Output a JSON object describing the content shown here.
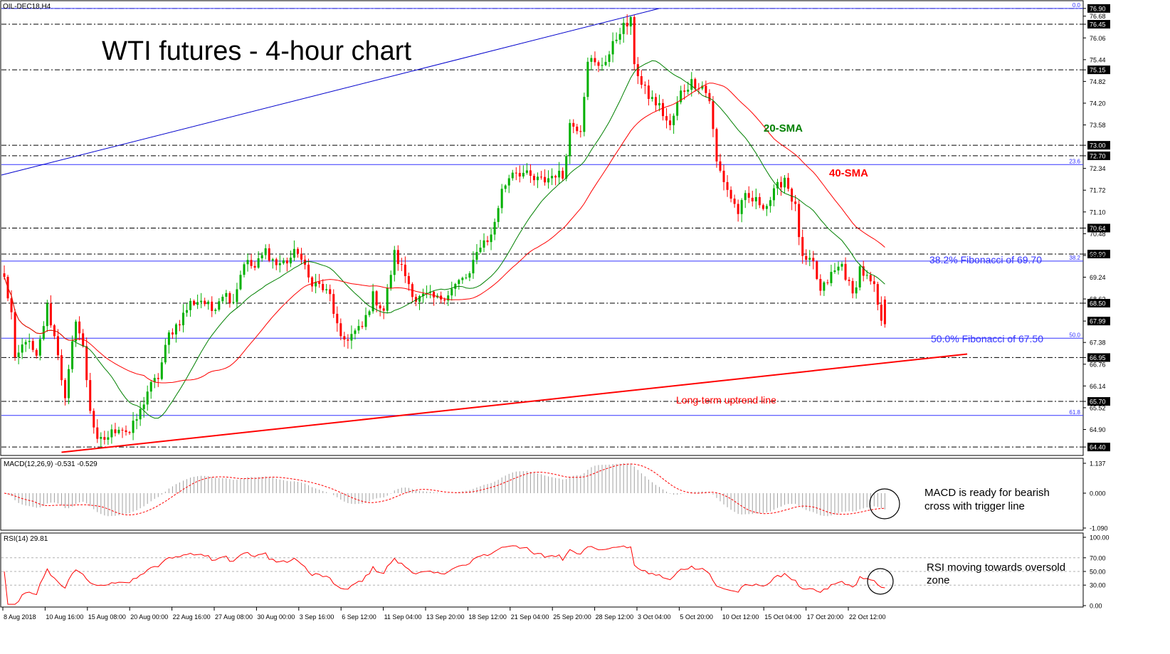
{
  "chart_data": {
    "type": "candlestick",
    "symbol": "OIL-DEC18,H4",
    "title": "WTI futures - 4-hour chart",
    "main": {
      "ylim": [
        64.2,
        77.1
      ],
      "price_ticks": [
        "76.90",
        "76.68",
        "76.45",
        "76.06",
        "75.44",
        "75.15",
        "74.82",
        "74.20",
        "73.58",
        "73.00",
        "72.70",
        "72.34",
        "71.72",
        "71.10",
        "70.64",
        "70.48",
        "69.90",
        "69.86",
        "69.24",
        "68.62",
        "68.50",
        "67.99",
        "67.38",
        "66.95",
        "66.76",
        "66.14",
        "65.70",
        "65.52",
        "64.90",
        "64.40"
      ],
      "boxed_ticks": [
        "76.90",
        "76.45",
        "75.15",
        "73.00",
        "72.70",
        "70.64",
        "69.90",
        "68.50",
        "67.99",
        "66.95",
        "65.70",
        "64.40"
      ],
      "dashed_levels": [
        76.9,
        76.45,
        75.15,
        73.0,
        72.7,
        70.64,
        69.9,
        68.5,
        66.95,
        65.7,
        64.4
      ],
      "fib_levels": [
        {
          "price": 76.9,
          "tag": "0.0"
        },
        {
          "price": 72.45,
          "tag": "23.6"
        },
        {
          "price": 69.7,
          "tag": "38.2"
        },
        {
          "price": 67.5,
          "tag": "50.0"
        },
        {
          "price": 65.3,
          "tag": "61.8"
        }
      ],
      "channel_line": {
        "start": [
          0,
          72.15
        ],
        "end": [
          183,
          76.9
        ]
      },
      "uptrend_line": {
        "start": [
          16,
          64.25
        ],
        "end": [
          269,
          67.05
        ]
      },
      "anchors": [
        [
          0,
          69.2
        ],
        [
          2,
          68.2
        ],
        [
          3,
          66.8
        ],
        [
          6,
          67.5
        ],
        [
          9,
          66.9
        ],
        [
          12,
          68.4
        ],
        [
          15,
          67.1
        ],
        [
          17,
          65.7
        ],
        [
          20,
          68.1
        ],
        [
          22,
          67.2
        ],
        [
          24,
          65.5
        ],
        [
          26,
          64.5
        ],
        [
          29,
          64.7
        ],
        [
          32,
          65.0
        ],
        [
          35,
          64.8
        ],
        [
          38,
          65.4
        ],
        [
          40,
          66.0
        ],
        [
          43,
          66.4
        ],
        [
          46,
          67.6
        ],
        [
          49,
          68.0
        ],
        [
          52,
          68.5
        ],
        [
          55,
          68.6
        ],
        [
          58,
          68.3
        ],
        [
          61,
          68.8
        ],
        [
          64,
          68.6
        ],
        [
          67,
          69.7
        ],
        [
          70,
          69.5
        ],
        [
          73,
          70.0
        ],
        [
          76,
          69.6
        ],
        [
          79,
          69.7
        ],
        [
          82,
          70.0
        ],
        [
          85,
          69.2
        ],
        [
          88,
          69.0
        ],
        [
          91,
          68.7
        ],
        [
          94,
          67.4
        ],
        [
          97,
          67.6
        ],
        [
          100,
          67.8
        ],
        [
          103,
          68.7
        ],
        [
          106,
          68.3
        ],
        [
          109,
          69.9
        ],
        [
          112,
          69.3
        ],
        [
          115,
          68.6
        ],
        [
          118,
          68.7
        ],
        [
          121,
          68.6
        ],
        [
          124,
          68.8
        ],
        [
          127,
          69.1
        ],
        [
          130,
          69.3
        ],
        [
          133,
          70.2
        ],
        [
          136,
          70.4
        ],
        [
          139,
          71.7
        ],
        [
          142,
          72.3
        ],
        [
          145,
          72.2
        ],
        [
          148,
          72.0
        ],
        [
          151,
          72.0
        ],
        [
          154,
          72.2
        ],
        [
          156,
          72.1
        ],
        [
          158,
          73.6
        ],
        [
          161,
          73.5
        ],
        [
          163,
          75.5
        ],
        [
          166,
          75.2
        ],
        [
          169,
          75.6
        ],
        [
          172,
          76.3
        ],
        [
          175,
          76.5
        ],
        [
          176,
          75.4
        ],
        [
          178,
          74.7
        ],
        [
          180,
          74.4
        ],
        [
          183,
          74.1
        ],
        [
          186,
          73.5
        ],
        [
          189,
          74.5
        ],
        [
          192,
          74.8
        ],
        [
          195,
          74.7
        ],
        [
          197,
          74.3
        ],
        [
          199,
          72.5
        ],
        [
          201,
          72.0
        ],
        [
          203,
          71.5
        ],
        [
          205,
          71.1
        ],
        [
          207,
          71.5
        ],
        [
          210,
          71.4
        ],
        [
          213,
          71.3
        ],
        [
          216,
          71.8
        ],
        [
          218,
          72.1
        ],
        [
          221,
          71.2
        ],
        [
          223,
          69.7
        ],
        [
          226,
          69.6
        ],
        [
          228,
          68.8
        ],
        [
          231,
          69.3
        ],
        [
          234,
          69.6
        ],
        [
          237,
          68.7
        ],
        [
          239,
          69.5
        ],
        [
          241,
          69.2
        ],
        [
          243,
          68.9
        ],
        [
          245,
          68.0
        ]
      ],
      "last_candle": [
        246,
        68.6,
        68.7,
        67.8,
        67.9
      ],
      "sma20_color": "#008000",
      "sma40_color": "#ff0000",
      "bull_color": "#00b000",
      "bear_color": "#ff0000",
      "channel_color": "#0000cc",
      "fib_color": "#3333ff",
      "trend_color": "#ff0000"
    },
    "macd": {
      "label": "MACD(12,26,9) -0.531 -0.529",
      "ylim": [
        -1.09,
        1.137
      ],
      "ticks": [
        "1.137",
        "0.000",
        "-1.090"
      ]
    },
    "rsi": {
      "label": "RSI(14) 29.81",
      "ylim": [
        0,
        100
      ],
      "ticks": [
        "100.00",
        "70.00",
        "50.00",
        "30.00",
        "0.00"
      ],
      "levels": [
        70,
        50,
        30
      ]
    },
    "x_labels": [
      "8 Aug 2018",
      "10 Aug 16:00",
      "15 Aug 08:00",
      "20 Aug 00:00",
      "22 Aug 16:00",
      "27 Aug 08:00",
      "30 Aug 00:00",
      "3 Sep 16:00",
      "6 Sep 12:00",
      "11 Sep 04:00",
      "13 Sep 20:00",
      "18 Sep 12:00",
      "21 Sep 04:00",
      "25 Sep 20:00",
      "28 Sep 12:00",
      "3 Oct 04:00",
      "5 Oct 20:00",
      "10 Oct 12:00",
      "15 Oct 04:00",
      "17 Oct 20:00",
      "22 Oct 12:00"
    ],
    "annotations": {
      "sma20": "20-SMA",
      "sma40": "40-SMA",
      "fib382": "38.2% Fibonacci of 69.70",
      "fib50": "50.0% Fibonacci of 67.50",
      "uptrend": "Long-term uptrend line",
      "macd_line1": "MACD is ready for bearish",
      "macd_line2": "cross with trigger line",
      "rsi_line1": "RSI moving towards oversold",
      "rsi_line2": "zone"
    }
  }
}
